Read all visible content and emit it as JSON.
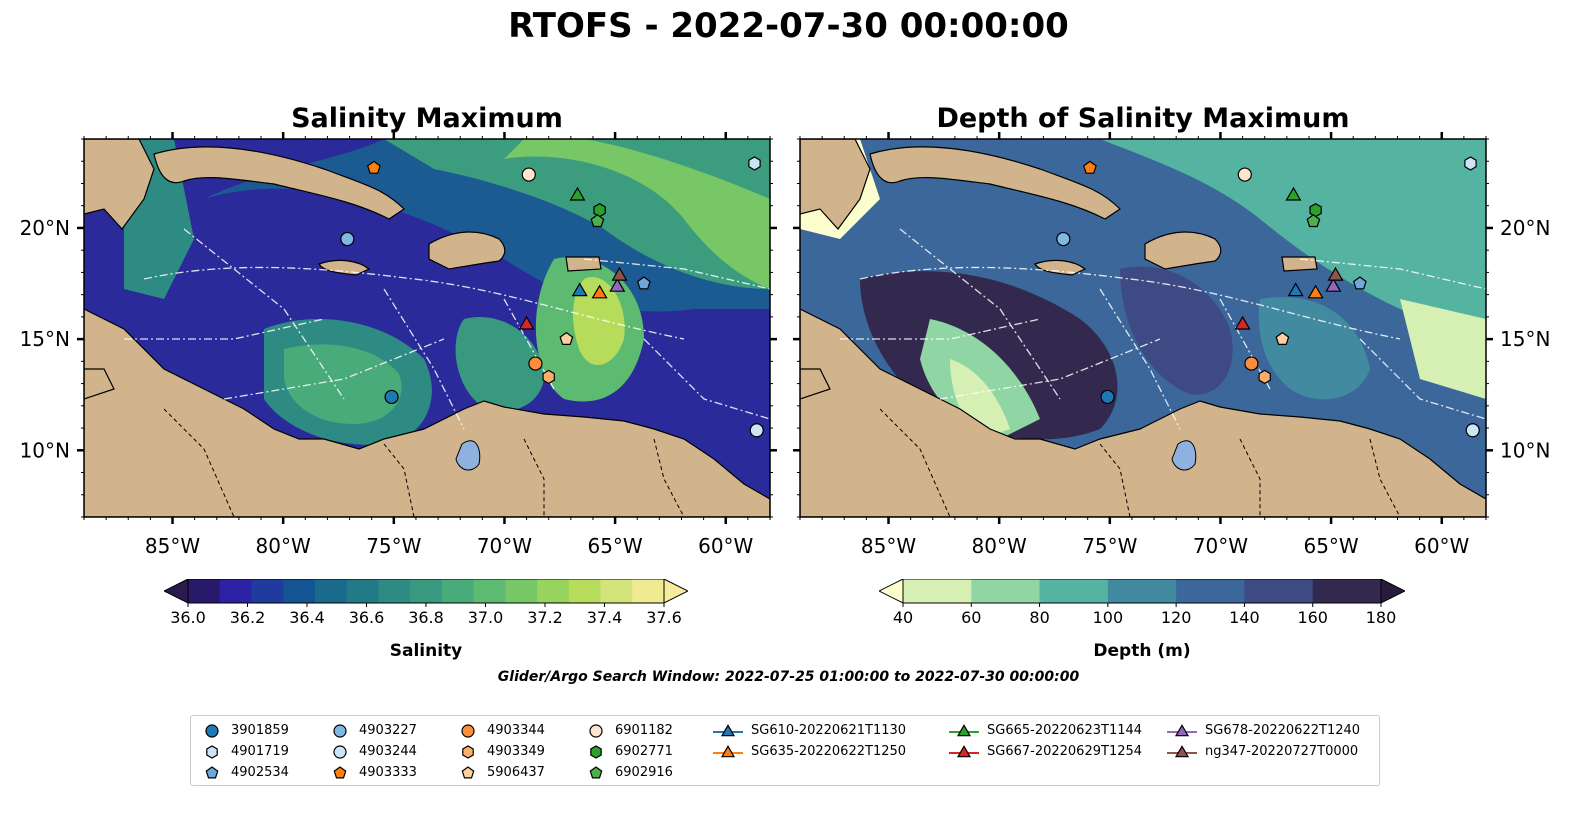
{
  "figure": {
    "suptitle": "RTOFS - 2022-07-30 00:00:00",
    "search_window": "Glider/Argo Search Window: 2022-07-25 01:00:00 to 2022-07-30 00:00:00"
  },
  "panels": [
    {
      "title": "Salinity Maximum"
    },
    {
      "title": "Depth of Salinity Maximum"
    }
  ],
  "axes": {
    "lon_range": [
      -89,
      -58
    ],
    "lat_range": [
      7,
      24
    ],
    "lon_ticks": [
      -85,
      -80,
      -75,
      -70,
      -65,
      -60
    ],
    "lon_tick_labels": [
      "85°W",
      "80°W",
      "75°W",
      "70°W",
      "65°W",
      "60°W"
    ],
    "lat_ticks": [
      10,
      15,
      20
    ],
    "lat_tick_labels": [
      "10°N",
      "15°N",
      "20°N"
    ]
  },
  "colorbars": [
    {
      "label": "Salinity",
      "ticks": [
        "36.0",
        "36.2",
        "36.4",
        "36.6",
        "36.8",
        "37.0",
        "37.2",
        "37.4",
        "37.6"
      ],
      "colors": [
        "#29196a",
        "#2d21a5",
        "#1f3b9d",
        "#145493",
        "#1a6a8b",
        "#227a86",
        "#2d8b83",
        "#39997f",
        "#48ab79",
        "#5cba71",
        "#77c766",
        "#97d35d",
        "#b7dc5c",
        "#d5e47a",
        "#f0ea92"
      ],
      "under": "#2a1a4e",
      "over": "#f5ec9e"
    },
    {
      "label": "Depth (m)",
      "ticks": [
        "40",
        "60",
        "80",
        "100",
        "120",
        "140",
        "160",
        "180"
      ],
      "colors": [
        "#d6efb2",
        "#8fd6a4",
        "#55b3a2",
        "#428aa0",
        "#3b679a",
        "#3e4a84",
        "#33294f"
      ],
      "under": "#fdfece",
      "over": "#2a1b3e"
    }
  ],
  "colors": {
    "land": "#d2b48c",
    "lake": "#8fb1e0"
  },
  "argo_floats": [
    {
      "id": "3901859",
      "lon": -75.1,
      "lat": 12.4,
      "marker": "circle",
      "color": "#1f77b4"
    },
    {
      "id": "4901719",
      "lon": -58.7,
      "lat": 22.9,
      "marker": "hexagon",
      "color": "#cce4f6"
    },
    {
      "id": "4902534",
      "lon": -63.7,
      "lat": 17.5,
      "marker": "pentagon",
      "color": "#6fa8dc"
    },
    {
      "id": "4903227",
      "lon": -77.1,
      "lat": 19.5,
      "marker": "circle",
      "color": "#7fb8e0"
    },
    {
      "id": "4903244",
      "lon": -58.6,
      "lat": 10.9,
      "marker": "circle",
      "color": "#cde6f7"
    },
    {
      "id": "4903333",
      "lon": -75.9,
      "lat": 22.7,
      "marker": "pentagon",
      "color": "#ff7f0e"
    },
    {
      "id": "4903344",
      "lon": -68.6,
      "lat": 13.9,
      "marker": "circle",
      "color": "#fd8d3c"
    },
    {
      "id": "4903349",
      "lon": -68.0,
      "lat": 13.3,
      "marker": "hexagon",
      "color": "#fdae6b"
    },
    {
      "id": "5906437",
      "lon": -67.2,
      "lat": 15.0,
      "marker": "pentagon",
      "color": "#fdd0a2"
    },
    {
      "id": "6901182",
      "lon": -68.9,
      "lat": 22.4,
      "marker": "circle",
      "color": "#fee6ce"
    },
    {
      "id": "6902771",
      "lon": -65.7,
      "lat": 20.8,
      "marker": "hexagon",
      "color": "#2ca02c"
    },
    {
      "id": "6902916",
      "lon": -65.8,
      "lat": 20.3,
      "marker": "pentagon",
      "color": "#4caf50"
    }
  ],
  "gliders": [
    {
      "id": "SG610-20220621T1130",
      "lon": -66.6,
      "lat": 17.2,
      "color": "#1f77b4"
    },
    {
      "id": "SG635-20220622T1250",
      "lon": -65.7,
      "lat": 17.1,
      "color": "#ff7f0e"
    },
    {
      "id": "SG665-20220623T1144",
      "lon": -66.7,
      "lat": 21.5,
      "color": "#2ca02c"
    },
    {
      "id": "SG667-20220629T1254",
      "lon": -69.0,
      "lat": 15.7,
      "color": "#d62728"
    },
    {
      "id": "SG678-20220622T1240",
      "lon": -64.9,
      "lat": 17.4,
      "color": "#9467bd"
    },
    {
      "id": "ng347-20220727T0000",
      "lon": -64.8,
      "lat": 17.9,
      "color": "#8c564b"
    }
  ]
}
